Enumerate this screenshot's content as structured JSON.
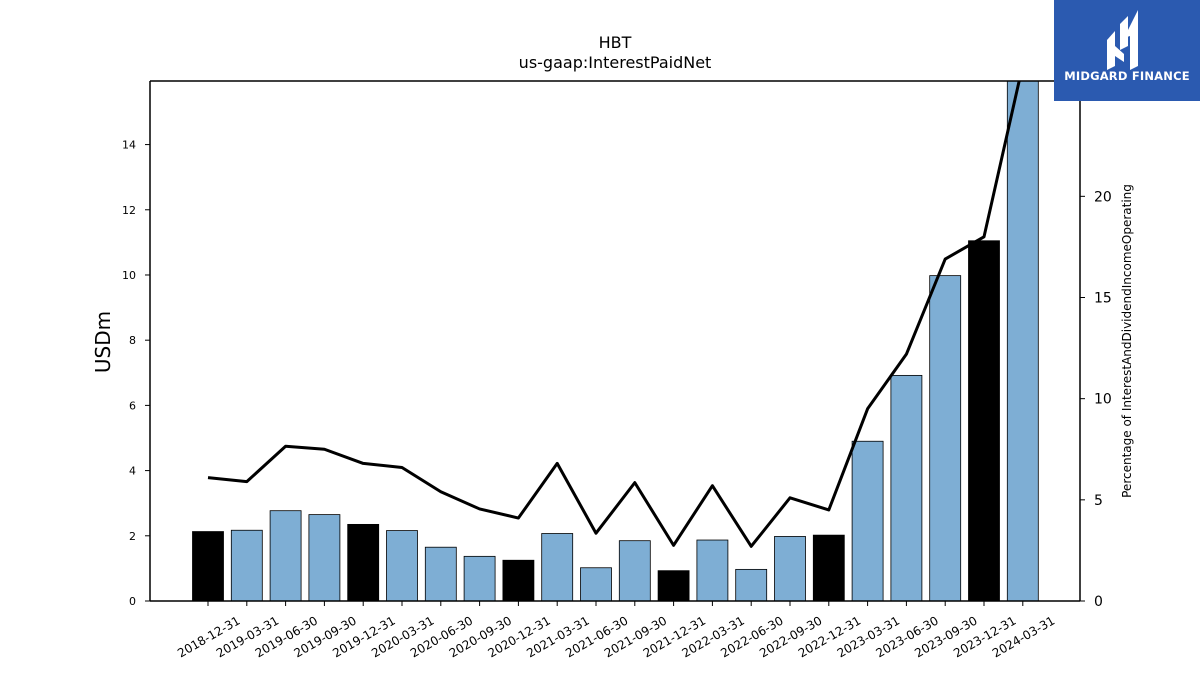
{
  "chart_data": {
    "type": "bar",
    "title": "HBT",
    "subtitle": "us-gaap:InterestPaidNet",
    "ylabel": "USDm",
    "y2label": "Percentage of InterestAndDividendIncomeOperating",
    "categories": [
      "2018-12-31",
      "2019-03-31",
      "2019-06-30",
      "2019-09-30",
      "2019-12-31",
      "2020-03-31",
      "2020-06-30",
      "2020-09-30",
      "2020-12-31",
      "2021-03-31",
      "2021-06-30",
      "2021-09-30",
      "2021-12-31",
      "2022-03-31",
      "2022-06-30",
      "2022-09-30",
      "2022-12-31",
      "2023-03-31",
      "2023-06-30",
      "2023-09-30",
      "2023-12-31",
      "2024-03-31"
    ],
    "series": [
      {
        "kind": "bar",
        "axis": "left",
        "values": [
          2.13,
          2.17,
          2.77,
          2.65,
          2.35,
          2.16,
          1.65,
          1.37,
          1.25,
          2.07,
          1.02,
          1.85,
          0.93,
          1.87,
          0.97,
          1.98,
          2.02,
          4.9,
          6.92,
          9.98,
          11.05,
          15.95
        ],
        "colors": [
          "#000000",
          "#7eaed4",
          "#7eaed4",
          "#7eaed4",
          "#000000",
          "#7eaed4",
          "#7eaed4",
          "#7eaed4",
          "#000000",
          "#7eaed4",
          "#7eaed4",
          "#7eaed4",
          "#000000",
          "#7eaed4",
          "#7eaed4",
          "#7eaed4",
          "#000000",
          "#7eaed4",
          "#7eaed4",
          "#7eaed4",
          "#000000",
          "#7eaed4"
        ]
      },
      {
        "kind": "line",
        "axis": "right",
        "color": "#000000",
        "values": [
          6.1,
          5.9,
          7.65,
          7.5,
          6.8,
          6.6,
          5.4,
          4.55,
          4.1,
          6.8,
          3.35,
          5.85,
          2.75,
          5.7,
          2.7,
          5.1,
          4.5,
          9.5,
          12.2,
          16.9,
          18.0,
          26.5
        ]
      }
    ],
    "ylim": [
      0,
      15.95
    ],
    "yticks": [
      0,
      2,
      4,
      6,
      8,
      10,
      12,
      14
    ],
    "y2lim": [
      0,
      25.7
    ],
    "y2ticks": [
      0,
      5,
      10,
      15,
      20
    ],
    "colors": {
      "bar_regular": "#7eaed4",
      "bar_highlight": "#000000",
      "line": "#000000"
    },
    "grid": false,
    "legend": "none"
  },
  "logo": {
    "text": "MIDGARD FINANCE",
    "background": "#2b5ab0",
    "icon": "midgard-logo-icon"
  }
}
